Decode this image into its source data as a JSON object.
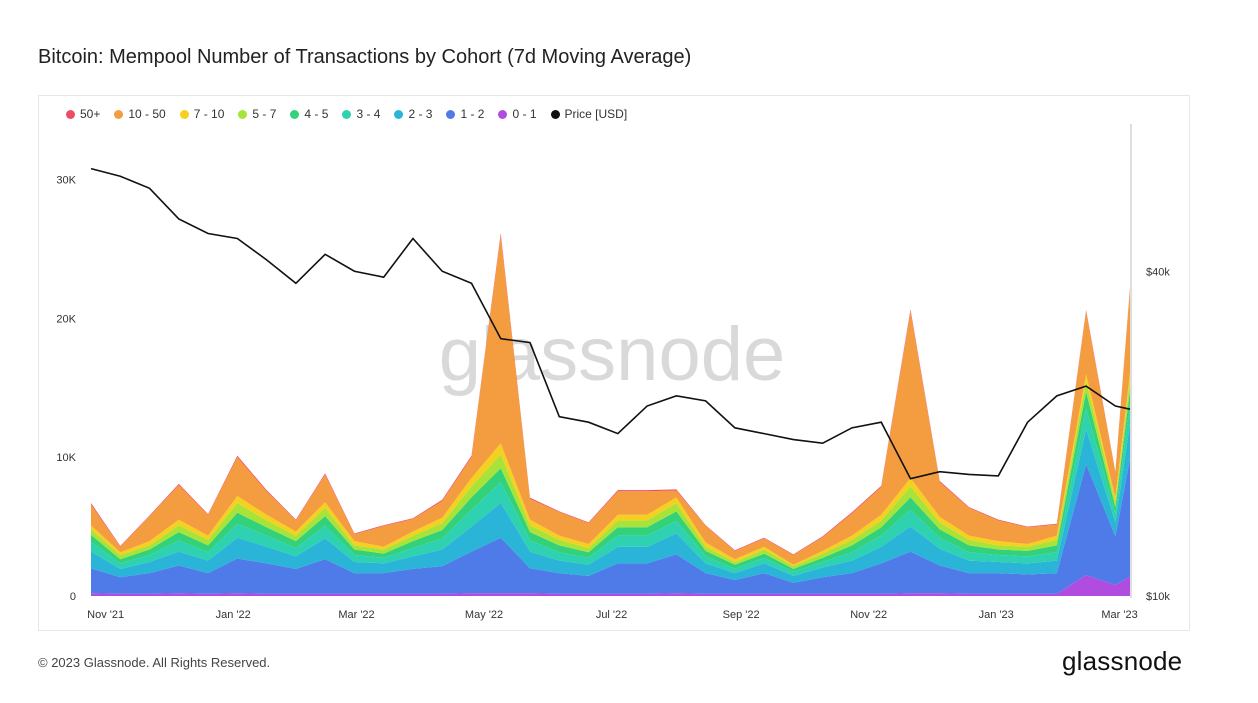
{
  "header": {
    "title": "Bitcoin: Mempool Number of Transactions by Cohort (7d Moving Average)"
  },
  "footer": {
    "copyright": "© 2023 Glassnode. All Rights Reserved.",
    "brand": "glassnode"
  },
  "watermark": "glassnode",
  "chart_data": {
    "type": "area",
    "title": "Bitcoin: Mempool Number of Transactions by Cohort (7d Moving Average)",
    "stacked": true,
    "x_ticks": [
      "Nov '21",
      "Jan '22",
      "Mar '22",
      "May '22",
      "Jul '22",
      "Sep '22",
      "Nov '22",
      "Jan '23",
      "Mar '23"
    ],
    "y_left_ticks": [
      {
        "value": 0,
        "label": "0"
      },
      {
        "value": 10000,
        "label": "10K"
      },
      {
        "value": 20000,
        "label": "20K"
      },
      {
        "value": 30000,
        "label": "30K"
      }
    ],
    "y_left_range": [
      0,
      34000
    ],
    "y_right_ticks": [
      {
        "value": 10000,
        "label": "$10k"
      },
      {
        "value": 40000,
        "label": "$40k"
      }
    ],
    "y_right_scale": "log",
    "y_right_range": [
      10000,
      75000
    ],
    "grid": false,
    "legend_position": "top-left",
    "x": [
      "2021-10-25",
      "2021-11-08",
      "2021-11-22",
      "2021-12-06",
      "2021-12-20",
      "2022-01-03",
      "2022-01-17",
      "2022-01-31",
      "2022-02-14",
      "2022-02-28",
      "2022-03-14",
      "2022-03-28",
      "2022-04-11",
      "2022-04-25",
      "2022-05-09",
      "2022-05-23",
      "2022-06-06",
      "2022-06-20",
      "2022-07-04",
      "2022-07-18",
      "2022-08-01",
      "2022-08-15",
      "2022-08-29",
      "2022-09-12",
      "2022-09-26",
      "2022-10-10",
      "2022-10-24",
      "2022-11-07",
      "2022-11-21",
      "2022-12-05",
      "2022-12-19",
      "2023-01-02",
      "2023-01-16",
      "2023-01-30",
      "2023-02-13",
      "2023-02-27",
      "2023-03-06"
    ],
    "series": [
      {
        "name": "0 - 1",
        "color": "#b04ce0",
        "values": [
          200,
          150,
          150,
          200,
          150,
          200,
          150,
          150,
          150,
          150,
          150,
          150,
          150,
          200,
          200,
          200,
          150,
          150,
          150,
          150,
          200,
          150,
          150,
          150,
          150,
          150,
          150,
          150,
          200,
          200,
          150,
          150,
          150,
          150,
          1500,
          800,
          1400
        ]
      },
      {
        "name": "1 - 2",
        "color": "#4f7be8",
        "values": [
          1800,
          1200,
          1500,
          2000,
          1500,
          2500,
          2200,
          1800,
          2500,
          1500,
          1500,
          1800,
          2000,
          3000,
          4000,
          1800,
          1500,
          1300,
          2200,
          2200,
          2800,
          1500,
          1000,
          1500,
          800,
          1200,
          1500,
          2200,
          3000,
          2000,
          1500,
          1500,
          1400,
          1500,
          8000,
          3500,
          8500
        ]
      },
      {
        "name": "2 - 3",
        "color": "#29b4d8",
        "values": [
          1200,
          600,
          800,
          1000,
          900,
          1500,
          1200,
          900,
          1500,
          800,
          700,
          900,
          1200,
          1800,
          2500,
          1200,
          900,
          800,
          1200,
          1200,
          1500,
          700,
          500,
          700,
          500,
          700,
          900,
          1200,
          1800,
          1200,
          900,
          800,
          800,
          900,
          2500,
          1000,
          2500
        ]
      },
      {
        "name": "3 - 4",
        "color": "#2ed1b0",
        "values": [
          700,
          400,
          500,
          800,
          600,
          1000,
          800,
          600,
          900,
          500,
          400,
          600,
          800,
          1200,
          1500,
          800,
          600,
          500,
          800,
          800,
          900,
          500,
          300,
          400,
          300,
          400,
          600,
          800,
          1200,
          800,
          600,
          500,
          500,
          600,
          1500,
          600,
          1400
        ]
      },
      {
        "name": "4 - 5",
        "color": "#33d17a",
        "values": [
          500,
          300,
          400,
          600,
          500,
          800,
          600,
          500,
          700,
          400,
          300,
          500,
          600,
          900,
          1000,
          600,
          500,
          400,
          600,
          600,
          700,
          400,
          300,
          300,
          200,
          300,
          500,
          600,
          900,
          600,
          500,
          400,
          400,
          500,
          1200,
          500,
          1000
        ]
      },
      {
        "name": "5 - 7",
        "color": "#a9e33a",
        "values": [
          400,
          300,
          300,
          500,
          400,
          700,
          500,
          400,
          600,
          300,
          300,
          400,
          500,
          800,
          1000,
          500,
          400,
          300,
          500,
          500,
          600,
          300,
          200,
          300,
          200,
          300,
          400,
          500,
          800,
          500,
          400,
          300,
          300,
          400,
          800,
          400,
          800
        ]
      },
      {
        "name": "7 - 10",
        "color": "#f5d020",
        "values": [
          300,
          200,
          300,
          400,
          300,
          500,
          400,
          300,
          400,
          300,
          200,
          300,
          400,
          600,
          800,
          400,
          300,
          300,
          400,
          400,
          400,
          300,
          200,
          200,
          100,
          200,
          300,
          400,
          600,
          400,
          300,
          300,
          200,
          300,
          500,
          300,
          500
        ]
      },
      {
        "name": "10 - 50",
        "color": "#f39c40",
        "values": [
          1500,
          400,
          1800,
          2500,
          1500,
          2800,
          1700,
          800,
          2000,
          500,
          1500,
          900,
          1200,
          1500,
          15000,
          1500,
          1700,
          1500,
          1700,
          1700,
          500,
          1200,
          600,
          600,
          700,
          1000,
          1600,
          2000,
          12000,
          2500,
          2000,
          1500,
          1200,
          800,
          4500,
          1800,
          6000
        ]
      },
      {
        "name": "50+",
        "color": "#ef4c63",
        "values": [
          100,
          50,
          50,
          80,
          50,
          100,
          80,
          50,
          80,
          50,
          50,
          50,
          80,
          100,
          150,
          80,
          50,
          50,
          80,
          80,
          80,
          50,
          50,
          50,
          50,
          50,
          80,
          80,
          150,
          80,
          50,
          50,
          50,
          50,
          100,
          50,
          100
        ]
      },
      {
        "name": "Price [USD]",
        "color": "#111111",
        "axis": "right",
        "values": [
          62000,
          60000,
          57000,
          50000,
          47000,
          46000,
          42000,
          38000,
          43000,
          40000,
          39000,
          46000,
          40000,
          38000,
          30000,
          29500,
          21500,
          21000,
          20000,
          22500,
          23500,
          23000,
          20500,
          20000,
          19500,
          19200,
          20500,
          21000,
          16500,
          17000,
          16800,
          16700,
          21000,
          23500,
          24500,
          22500,
          22200
        ]
      }
    ]
  }
}
